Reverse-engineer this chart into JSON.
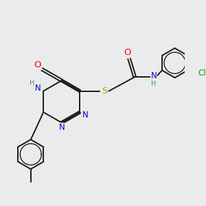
{
  "bg_color": "#ebebeb",
  "bond_color": "#1a1a1a",
  "bond_width": 1.4,
  "atom_colors": {
    "O": "#ff0000",
    "N": "#0000cc",
    "S": "#aaaa00",
    "Cl": "#00aa00",
    "C": "#1a1a1a",
    "H": "#4488aa"
  },
  "font_size": 7.5,
  "figsize": [
    3.0,
    3.0
  ],
  "dpi": 100
}
